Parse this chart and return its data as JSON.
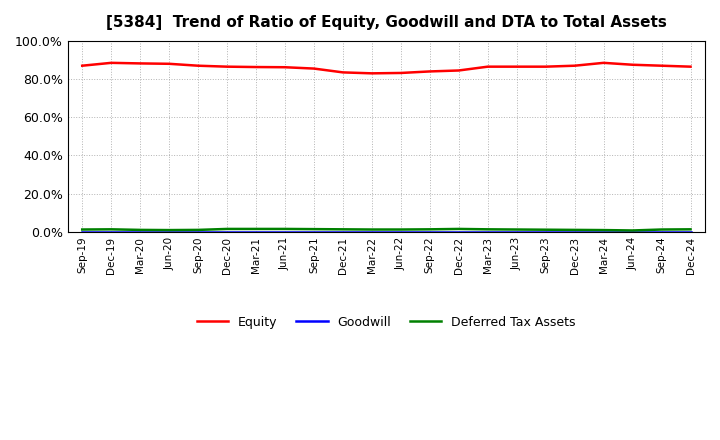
{
  "title": "[5384]  Trend of Ratio of Equity, Goodwill and DTA to Total Assets",
  "x_labels": [
    "Sep-19",
    "Dec-19",
    "Mar-20",
    "Jun-20",
    "Sep-20",
    "Dec-20",
    "Mar-21",
    "Jun-21",
    "Sep-21",
    "Dec-21",
    "Mar-22",
    "Jun-22",
    "Sep-22",
    "Dec-22",
    "Mar-23",
    "Jun-23",
    "Sep-23",
    "Dec-23",
    "Mar-24",
    "Jun-24",
    "Sep-24",
    "Dec-24"
  ],
  "equity": [
    87.0,
    88.5,
    88.2,
    88.0,
    87.0,
    86.5,
    86.3,
    86.2,
    85.5,
    83.5,
    83.0,
    83.2,
    84.0,
    84.5,
    86.5,
    86.5,
    86.5,
    87.0,
    88.5,
    87.5,
    87.0,
    86.5
  ],
  "goodwill": [
    0.0,
    0.0,
    0.0,
    0.0,
    0.0,
    0.0,
    0.0,
    0.0,
    0.0,
    0.0,
    0.0,
    0.0,
    0.0,
    0.0,
    0.0,
    0.0,
    0.0,
    0.0,
    0.0,
    0.0,
    0.0,
    0.0
  ],
  "dta": [
    1.2,
    1.3,
    1.0,
    0.9,
    1.0,
    1.5,
    1.5,
    1.5,
    1.4,
    1.3,
    1.2,
    1.2,
    1.3,
    1.5,
    1.3,
    1.2,
    1.1,
    1.0,
    0.9,
    0.7,
    1.2,
    1.3
  ],
  "equity_color": "#FF0000",
  "goodwill_color": "#0000FF",
  "dta_color": "#008000",
  "ylim": [
    0,
    100
  ],
  "yticks": [
    0,
    20,
    40,
    60,
    80,
    100
  ],
  "background_color": "#FFFFFF",
  "grid_color": "#AAAAAA",
  "line_width": 1.8,
  "title_fontsize": 11
}
